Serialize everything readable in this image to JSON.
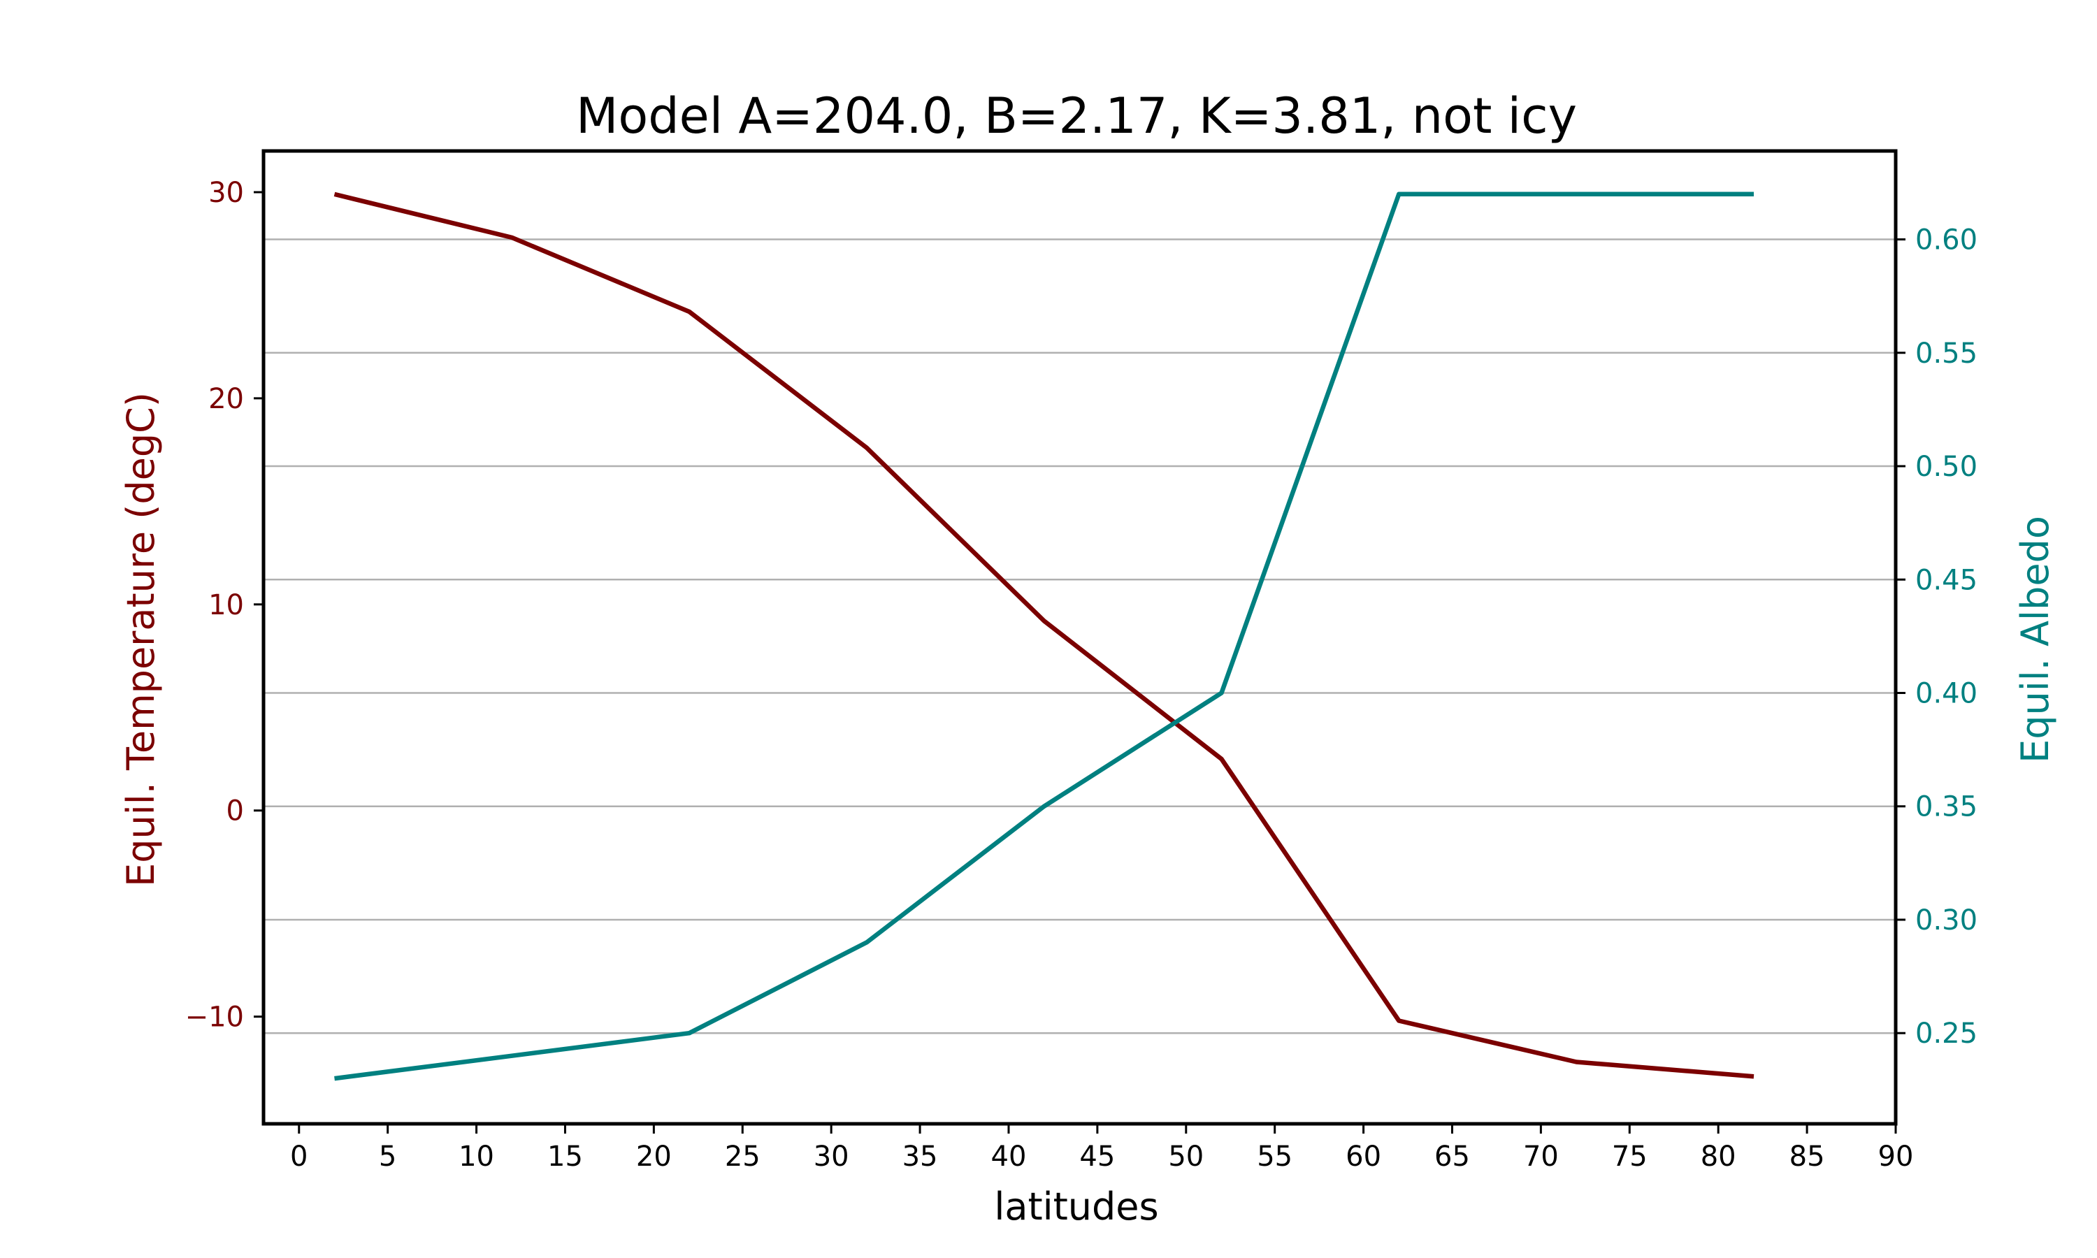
{
  "chart_data": {
    "type": "line",
    "title": "Model A=204.0, B=2.17, K=3.81, not icy",
    "xlabel": "latitudes",
    "ylabel_left": "Equil. Temperature (degC)",
    "ylabel_right": "Equil. Albedo",
    "x": [
      2,
      12,
      22,
      32,
      42,
      52,
      62,
      72,
      82
    ],
    "x_ticks": [
      0,
      5,
      10,
      15,
      20,
      25,
      30,
      35,
      40,
      45,
      50,
      55,
      60,
      65,
      70,
      75,
      80,
      85,
      90
    ],
    "x_tick_labels": [
      "0",
      "5",
      "10",
      "15",
      "20",
      "25",
      "30",
      "35",
      "40",
      "45",
      "50",
      "55",
      "60",
      "65",
      "70",
      "75",
      "80",
      "85",
      "90"
    ],
    "xlim": [
      -2,
      90
    ],
    "y_left_ticks": [
      -10,
      0,
      10,
      20,
      30
    ],
    "y_left_tick_labels": [
      "−10",
      "0",
      "10",
      "20",
      "30"
    ],
    "ylim_left": [
      -15.2,
      32
    ],
    "y_right_ticks": [
      0.25,
      0.3,
      0.35,
      0.4,
      0.45,
      0.5,
      0.55,
      0.6
    ],
    "y_right_tick_labels": [
      "0.25",
      "0.30",
      "0.35",
      "0.40",
      "0.45",
      "0.50",
      "0.55",
      "0.60"
    ],
    "ylim_right": [
      0.21,
      0.639
    ],
    "grid": "horizontal, right axis",
    "series": [
      {
        "axis": "left",
        "color": "#7b0000",
        "values": [
          29.9,
          27.8,
          24.2,
          17.6,
          9.2,
          2.5,
          -10.2,
          -12.2,
          -12.9
        ]
      },
      {
        "axis": "right",
        "color": "#008080",
        "values": [
          0.23,
          0.24,
          0.25,
          0.29,
          0.35,
          0.4,
          0.62,
          0.62,
          0.62
        ]
      }
    ],
    "colors": {
      "left_axis": "#7b0000",
      "right_axis": "#008080",
      "grid": "#b0b0b0",
      "frame": "#000000"
    }
  }
}
